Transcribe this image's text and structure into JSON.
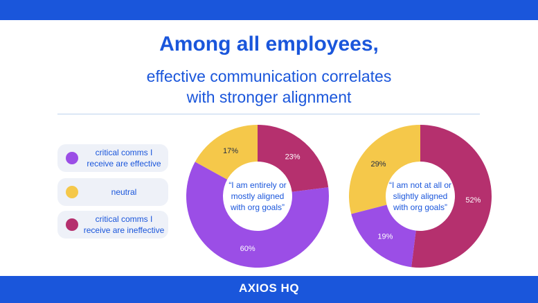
{
  "header": {
    "title": "Among all employees,",
    "subtitle_lines": [
      "effective communication correlates",
      "with stronger alignment"
    ]
  },
  "legend": [
    {
      "label_lines": [
        "critical comms I",
        "receive are effective"
      ],
      "color": "#9b4ee6"
    },
    {
      "label_lines": [
        "neutral"
      ],
      "color": "#f5c84a"
    },
    {
      "label_lines": [
        "critical comms I",
        "receive are ineffective"
      ],
      "color": "#b5306e"
    }
  ],
  "footer": {
    "brand": "AXIOS HQ"
  },
  "colors": {
    "accent": "#1a56db",
    "effective": "#9b4ee6",
    "neutral": "#f5c84a",
    "ineffective": "#b5306e"
  },
  "chart_data": [
    {
      "type": "pie",
      "center_label_lines": [
        "“I am entirely or",
        "mostly aligned",
        "with org goals”"
      ],
      "slices": [
        {
          "category": "critical comms I receive are ineffective",
          "value": 23,
          "label": "23%"
        },
        {
          "category": "critical comms I receive are effective",
          "value": 60,
          "label": "60%"
        },
        {
          "category": "neutral",
          "value": 17,
          "label": "17%"
        }
      ]
    },
    {
      "type": "pie",
      "center_label_lines": [
        "“I am not at all or",
        "slightly aligned",
        "with org goals”"
      ],
      "slices": [
        {
          "category": "critical comms I receive are ineffective",
          "value": 52,
          "label": "52%"
        },
        {
          "category": "critical comms I receive are effective",
          "value": 19,
          "label": "19%"
        },
        {
          "category": "neutral",
          "value": 29,
          "label": "29%"
        }
      ]
    }
  ]
}
